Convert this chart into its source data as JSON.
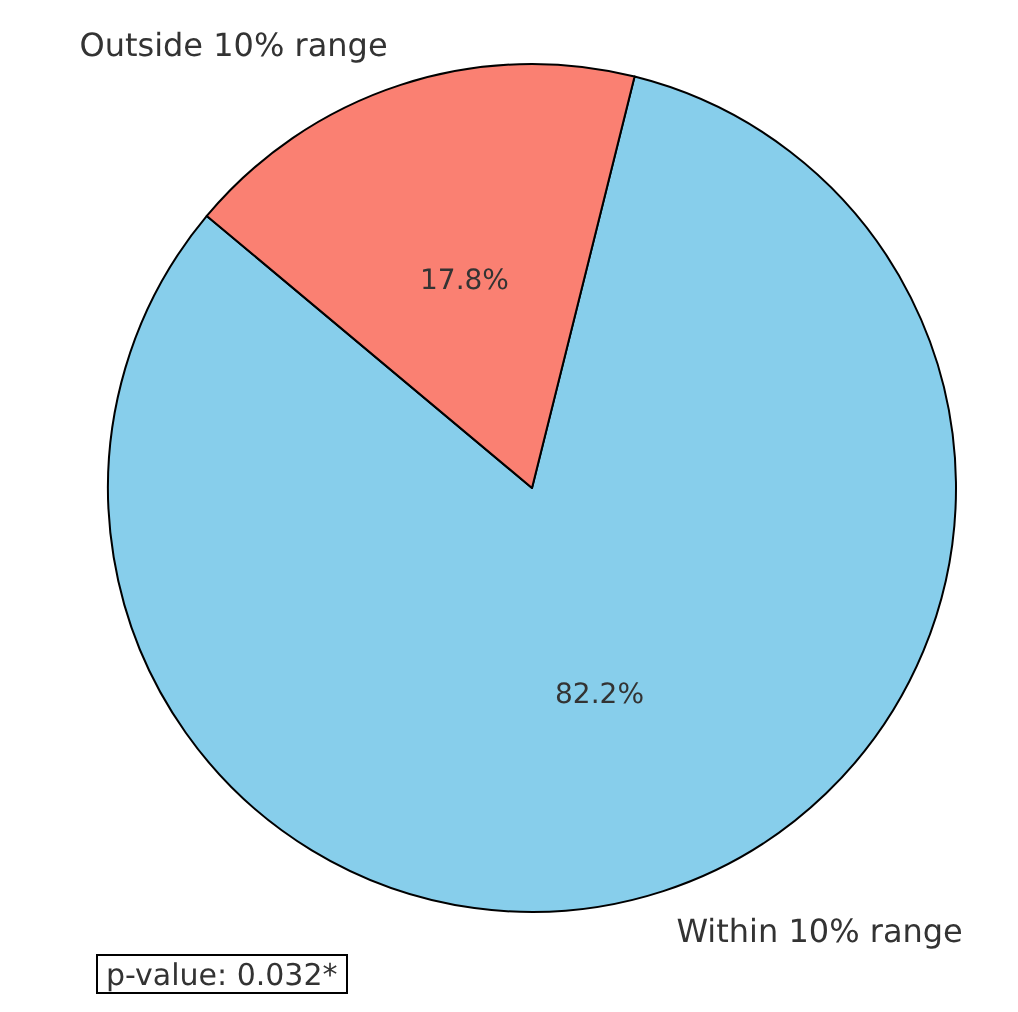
{
  "chart_data": {
    "type": "pie",
    "categories": [
      "Within 10% range",
      "Outside 10% range"
    ],
    "values": [
      82.2,
      17.8
    ],
    "colors": [
      "#87ceeb",
      "#fa8072"
    ],
    "value_labels": [
      "82.2%",
      "17.8%"
    ],
    "annotations": [
      "p-value: 0.032*"
    ]
  }
}
